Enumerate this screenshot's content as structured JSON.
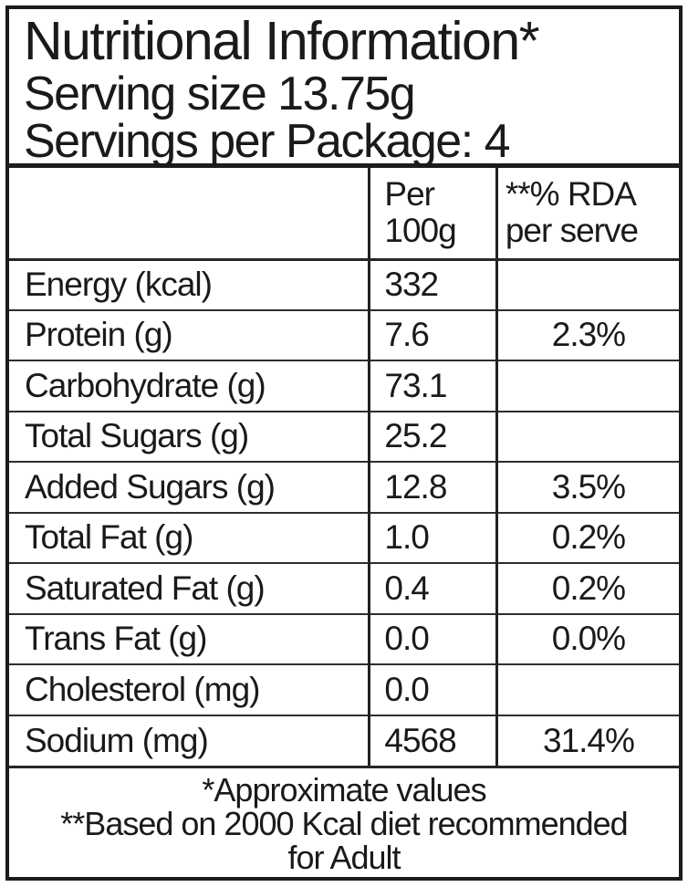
{
  "label": {
    "title": "Nutritional Information*",
    "serving_size_line": "Serving size 13.75g",
    "servings_line": "Servings per Package: 4",
    "columns": {
      "per_100g_line1": "Per",
      "per_100g_line2": "100g",
      "rda_line1": "**% RDA",
      "rda_line2": "per serve"
    },
    "rows": [
      {
        "nutrient": "Energy (kcal)",
        "per_100g": "332",
        "rda": ""
      },
      {
        "nutrient": "Protein (g)",
        "per_100g": "7.6",
        "rda": "2.3%"
      },
      {
        "nutrient": "Carbohydrate (g)",
        "per_100g": "73.1",
        "rda": ""
      },
      {
        "nutrient": "Total Sugars (g)",
        "per_100g": "25.2",
        "rda": ""
      },
      {
        "nutrient": "Added Sugars (g)",
        "per_100g": "12.8",
        "rda": "3.5%"
      },
      {
        "nutrient": "Total Fat (g)",
        "per_100g": "1.0",
        "rda": "0.2%"
      },
      {
        "nutrient": "Saturated Fat (g)",
        "per_100g": "0.4",
        "rda": "0.2%"
      },
      {
        "nutrient": "Trans Fat (g)",
        "per_100g": "0.0",
        "rda": "0.0%"
      },
      {
        "nutrient": "Cholesterol (mg)",
        "per_100g": "0.0",
        "rda": ""
      },
      {
        "nutrient": "Sodium (mg)",
        "per_100g": "4568",
        "rda": "31.4%"
      }
    ],
    "footnotes": [
      "*Approximate values",
      "**Based on 2000 Kcal diet recommended",
      "for Adult"
    ],
    "colors": {
      "text": "#1a1a1a",
      "border": "#1c1c1c",
      "background": "#ffffff"
    }
  }
}
